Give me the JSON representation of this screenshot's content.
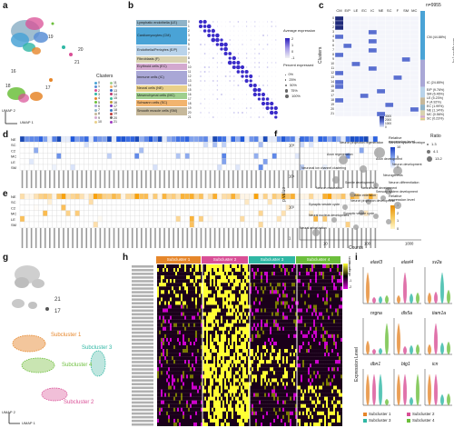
{
  "panels": {
    "a": "a",
    "b": "b",
    "c": "c",
    "d": "d",
    "e": "e",
    "f": "f",
    "g": "g",
    "h": "h",
    "i": "i"
  },
  "panel_a": {
    "cluster_numbers": [
      "0",
      "1",
      "2",
      "3",
      "4",
      "5",
      "6",
      "7",
      "8",
      "9",
      "10",
      "11",
      "12",
      "13",
      "14",
      "15",
      "16",
      "17",
      "18",
      "19",
      "20",
      "21"
    ],
    "legend_title": "Clusters",
    "legend_entries": [
      "0",
      "1",
      "2",
      "3",
      "4",
      "5",
      "6",
      "7",
      "8",
      "9",
      "10",
      "11",
      "12",
      "13",
      "14",
      "15",
      "16",
      "17",
      "18",
      "19",
      "20",
      "21"
    ],
    "umap1": "UMAP 1",
    "umap2": "UMAP 2"
  },
  "panel_b": {
    "cell_types": [
      {
        "name": "Lymphatic endothelia (LE)",
        "color": "#8fb3c8"
      },
      {
        "name": "Cardiomyocytes (CM)",
        "color": "#4aa3d6"
      },
      {
        "name": "Endothelia/Pericytes (E/P)",
        "color": "#b9d3ea"
      },
      {
        "name": "Fibroblasts (F)",
        "color": "#d9d2b0"
      },
      {
        "name": "Erythroid cells (EC)",
        "color": "#d3a9cf"
      },
      {
        "name": "Immune cells (IC)",
        "color": "#a9a7d6"
      },
      {
        "name": "Neural cells (NE)",
        "color": "#e9d08a"
      },
      {
        "name": "Mesenchymal cells (MC)",
        "color": "#9fcf8e"
      },
      {
        "name": "Schwann cells (SC)",
        "color": "#f2b46e"
      },
      {
        "name": "Smooth muscle cells (SM)",
        "color": "#c6b89a"
      }
    ],
    "avg_expr_title": "Average expression",
    "avg_expr_ticks": [
      "2",
      "1",
      "0",
      "-1"
    ],
    "pct_title": "Percent expressed",
    "pct_entries": [
      "0%",
      "25%",
      "50%",
      "75%",
      "100%"
    ]
  },
  "panel_c": {
    "col_headers": [
      "CM",
      "E/P",
      "LE",
      "EC",
      "IC",
      "NE",
      "SC",
      "F",
      "SM",
      "MC"
    ],
    "ylabel": "Clusters",
    "row_labels": [
      "0",
      "1",
      "2",
      "3",
      "4",
      "5",
      "6",
      "7",
      "8",
      "9",
      "10",
      "11",
      "12",
      "13",
      "14",
      "15",
      "16",
      "17",
      "18",
      "19",
      "20",
      "21"
    ],
    "colorbar_ticks": [
      "3000",
      "2000",
      "1000",
      "0"
    ],
    "bar_title": "n=9955",
    "bar_axis_label": "Cell types (%)",
    "composition": [
      {
        "label": "CM (44.88%)",
        "value": 44.88,
        "color": "#4aa3d6"
      },
      {
        "label": "IC (24.85%)",
        "value": 24.85,
        "color": "#a9a7d6"
      },
      {
        "label": "E/P (9.76%)",
        "value": 9.76,
        "color": "#b9d3ea"
      },
      {
        "label": "SM (6.46%)",
        "value": 6.46,
        "color": "#c6b89a"
      },
      {
        "label": "LE (5.23%)",
        "value": 5.23,
        "color": "#8fb3c8"
      },
      {
        "label": "F (4.92%)",
        "value": 4.92,
        "color": "#d9d2b0"
      },
      {
        "label": "EC (1.99%)",
        "value": 1.99,
        "color": "#d3a9cf"
      },
      {
        "label": "NE (1.14%)",
        "value": 1.14,
        "color": "#e9d08a"
      },
      {
        "label": "MC (0.56%)",
        "value": 0.56,
        "color": "#9fcf8e"
      },
      {
        "label": "SC (0.23%)",
        "value": 0.23,
        "color": "#f2b46e"
      }
    ]
  },
  "panel_d": {
    "rows": [
      "NE",
      "SC",
      "C2",
      "MC",
      "LE",
      "SM"
    ],
    "legend_title": "Relative expression level",
    "ticks": [
      "10",
      "5",
      "0"
    ]
  },
  "panel_e": {
    "rows": [
      "NE",
      "SC",
      "C2",
      "MC",
      "LE",
      "SM"
    ],
    "legend_title": "Relative expression level",
    "ticks": [
      "3",
      "2",
      "1",
      "0"
    ]
  },
  "panel_f": {
    "ylabel": "p value",
    "xlabel": "Counts",
    "y_ticks": [
      "10⁶",
      "10⁴",
      "10²",
      "1"
    ],
    "x_ticks": [
      "10",
      "100",
      "1000"
    ],
    "legend_title": "Ratio",
    "legend_entries": [
      "1.3",
      "4.1",
      "13.2"
    ],
    "terms": [
      "Neuron projection regeneration",
      "Nervous system development",
      "Axon regeneration",
      "Axon development",
      "Neuronal ion channel clustering",
      "Neuron development",
      "Neurogenesis",
      "Neuron differentiation",
      "Somite development",
      "Neuron maturation",
      "Neural tube development",
      "Sensory system development",
      "Axon extension",
      "Neuron projection development",
      "Synaptic vesicle cycle",
      "Neural nucleus development",
      "Synaptic vesicle cycle",
      "Neural arborization"
    ]
  },
  "panel_g": {
    "umap_labels": [
      "21",
      "17"
    ],
    "subclusters": [
      {
        "name": "Subcluster 1",
        "color": "#e6862a"
      },
      {
        "name": "Subcluster 2",
        "color": "#d94f96"
      },
      {
        "name": "Subcluster 3",
        "color": "#2fb7a4"
      },
      {
        "name": "Subcluster 4",
        "color": "#6cbf3c"
      }
    ],
    "umap1": "UMAP 1",
    "umap2": "UMAP 2"
  },
  "panel_h": {
    "headers": [
      {
        "name": "Subcluster 1",
        "color": "#e6862a"
      },
      {
        "name": "Subcluster 2",
        "color": "#d94f96"
      },
      {
        "name": "Subcluster 3",
        "color": "#2fb7a4"
      },
      {
        "name": "Subcluster 4",
        "color": "#6cbf3c"
      }
    ],
    "legend_title": "Expression",
    "ticks": [
      "2",
      "1",
      "0",
      "-1",
      "-2"
    ]
  },
  "panel_i": {
    "ylabel": "Expression Level",
    "genes": [
      "elavl3",
      "elavl4",
      "sv2a",
      "nrgna",
      "dlx5a",
      "tiam1a",
      "dbn1",
      "btg1",
      "icn"
    ],
    "legend": [
      {
        "name": "Subcluster 1",
        "color": "#e6862a"
      },
      {
        "name": "Subcluster 3",
        "color": "#2fb7a4"
      },
      {
        "name": "Subcluster 2",
        "color": "#d94f96"
      },
      {
        "name": "Subcluster 4",
        "color": "#6cbf3c"
      }
    ]
  }
}
